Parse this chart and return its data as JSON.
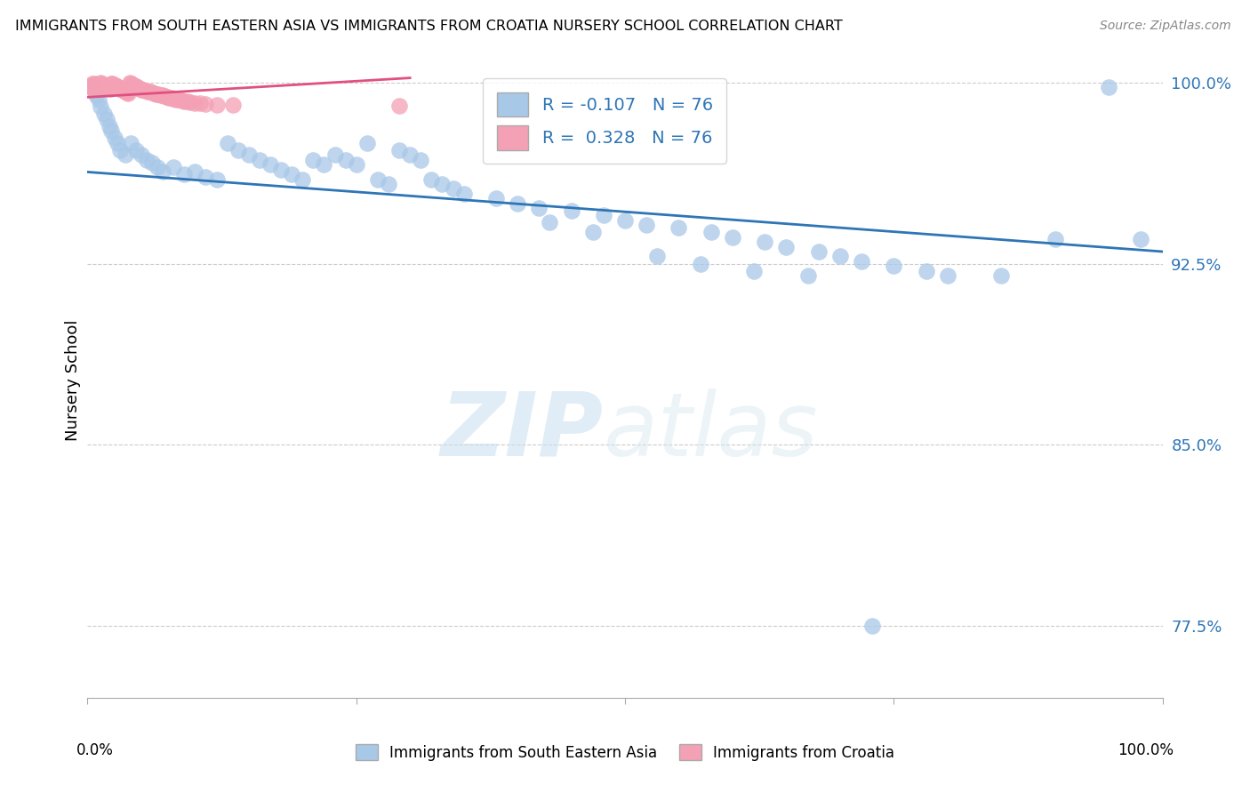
{
  "title": "IMMIGRANTS FROM SOUTH EASTERN ASIA VS IMMIGRANTS FROM CROATIA NURSERY SCHOOL CORRELATION CHART",
  "source": "Source: ZipAtlas.com",
  "xlabel_blue": "Immigrants from South Eastern Asia",
  "xlabel_pink": "Immigrants from Croatia",
  "ylabel": "Nursery School",
  "watermark_zip": "ZIP",
  "watermark_atlas": "atlas",
  "xlim": [
    0.0,
    1.0
  ],
  "ylim": [
    0.745,
    1.008
  ],
  "yticks": [
    0.775,
    0.85,
    0.925,
    1.0
  ],
  "ytick_labels": [
    "77.5%",
    "85.0%",
    "92.5%",
    "100.0%"
  ],
  "blue_R": -0.107,
  "blue_N": 76,
  "pink_R": 0.328,
  "pink_N": 76,
  "blue_color": "#a8c8e8",
  "blue_line_color": "#2e75b6",
  "pink_color": "#f4a0b5",
  "pink_line_color": "#e05080",
  "tick_label_color": "#2e75b6",
  "blue_scatter_x": [
    0.005,
    0.008,
    0.01,
    0.012,
    0.015,
    0.018,
    0.02,
    0.022,
    0.025,
    0.028,
    0.03,
    0.035,
    0.04,
    0.045,
    0.05,
    0.055,
    0.06,
    0.065,
    0.07,
    0.08,
    0.09,
    0.1,
    0.11,
    0.12,
    0.13,
    0.14,
    0.15,
    0.16,
    0.17,
    0.18,
    0.19,
    0.2,
    0.21,
    0.22,
    0.23,
    0.24,
    0.25,
    0.26,
    0.27,
    0.28,
    0.29,
    0.3,
    0.31,
    0.32,
    0.33,
    0.34,
    0.35,
    0.38,
    0.4,
    0.42,
    0.45,
    0.48,
    0.5,
    0.52,
    0.55,
    0.58,
    0.6,
    0.63,
    0.65,
    0.68,
    0.7,
    0.72,
    0.75,
    0.78,
    0.8,
    0.85,
    0.9,
    0.95,
    0.98,
    0.57,
    0.43,
    0.47,
    0.53,
    0.62,
    0.67,
    0.73
  ],
  "blue_scatter_y": [
    0.998,
    0.995,
    0.993,
    0.99,
    0.987,
    0.985,
    0.982,
    0.98,
    0.977,
    0.975,
    0.972,
    0.97,
    0.975,
    0.972,
    0.97,
    0.968,
    0.967,
    0.965,
    0.963,
    0.965,
    0.962,
    0.963,
    0.961,
    0.96,
    0.975,
    0.972,
    0.97,
    0.968,
    0.966,
    0.964,
    0.962,
    0.96,
    0.968,
    0.966,
    0.97,
    0.968,
    0.966,
    0.975,
    0.96,
    0.958,
    0.972,
    0.97,
    0.968,
    0.96,
    0.958,
    0.956,
    0.954,
    0.952,
    0.95,
    0.948,
    0.947,
    0.945,
    0.943,
    0.941,
    0.94,
    0.938,
    0.936,
    0.934,
    0.932,
    0.93,
    0.928,
    0.926,
    0.924,
    0.922,
    0.92,
    0.92,
    0.935,
    0.998,
    0.935,
    0.925,
    0.942,
    0.938,
    0.928,
    0.922,
    0.92,
    0.775
  ],
  "pink_scatter_x": [
    0.002,
    0.003,
    0.004,
    0.005,
    0.006,
    0.007,
    0.008,
    0.009,
    0.01,
    0.011,
    0.012,
    0.013,
    0.014,
    0.015,
    0.016,
    0.017,
    0.018,
    0.019,
    0.02,
    0.021,
    0.022,
    0.023,
    0.024,
    0.025,
    0.026,
    0.027,
    0.028,
    0.029,
    0.03,
    0.031,
    0.032,
    0.033,
    0.034,
    0.035,
    0.036,
    0.037,
    0.038,
    0.039,
    0.04,
    0.041,
    0.042,
    0.043,
    0.044,
    0.045,
    0.046,
    0.047,
    0.048,
    0.049,
    0.05,
    0.052,
    0.054,
    0.056,
    0.058,
    0.06,
    0.062,
    0.064,
    0.066,
    0.068,
    0.07,
    0.072,
    0.074,
    0.076,
    0.078,
    0.08,
    0.082,
    0.085,
    0.088,
    0.09,
    0.093,
    0.096,
    0.1,
    0.105,
    0.11,
    0.12,
    0.135,
    0.29
  ],
  "pink_scatter_y": [
    0.9985,
    0.9982,
    0.9979,
    0.9998,
    0.9996,
    0.9993,
    0.999,
    0.9987,
    0.9985,
    0.9982,
    0.9999,
    0.9997,
    0.9994,
    0.9991,
    0.9989,
    0.9986,
    0.9983,
    0.9981,
    0.9978,
    0.9975,
    0.9998,
    0.9996,
    0.9993,
    0.9991,
    0.9988,
    0.9985,
    0.9983,
    0.998,
    0.9978,
    0.9975,
    0.9972,
    0.997,
    0.9967,
    0.9965,
    0.9962,
    0.996,
    0.9957,
    0.9999,
    0.9997,
    0.9994,
    0.9992,
    0.9989,
    0.9987,
    0.9984,
    0.9982,
    0.9979,
    0.9977,
    0.9974,
    0.9972,
    0.9969,
    0.9967,
    0.9964,
    0.9962,
    0.9959,
    0.9957,
    0.9954,
    0.9952,
    0.9949,
    0.9947,
    0.9944,
    0.9942,
    0.9939,
    0.9937,
    0.9934,
    0.9932,
    0.9929,
    0.9927,
    0.9924,
    0.9922,
    0.9919,
    0.9917,
    0.9914,
    0.9912,
    0.9909,
    0.9907,
    0.9904
  ],
  "blue_line_x": [
    0.0,
    1.0
  ],
  "blue_line_y": [
    0.963,
    0.93
  ],
  "pink_line_x": [
    0.0,
    0.3
  ],
  "pink_line_y": [
    0.994,
    1.002
  ]
}
